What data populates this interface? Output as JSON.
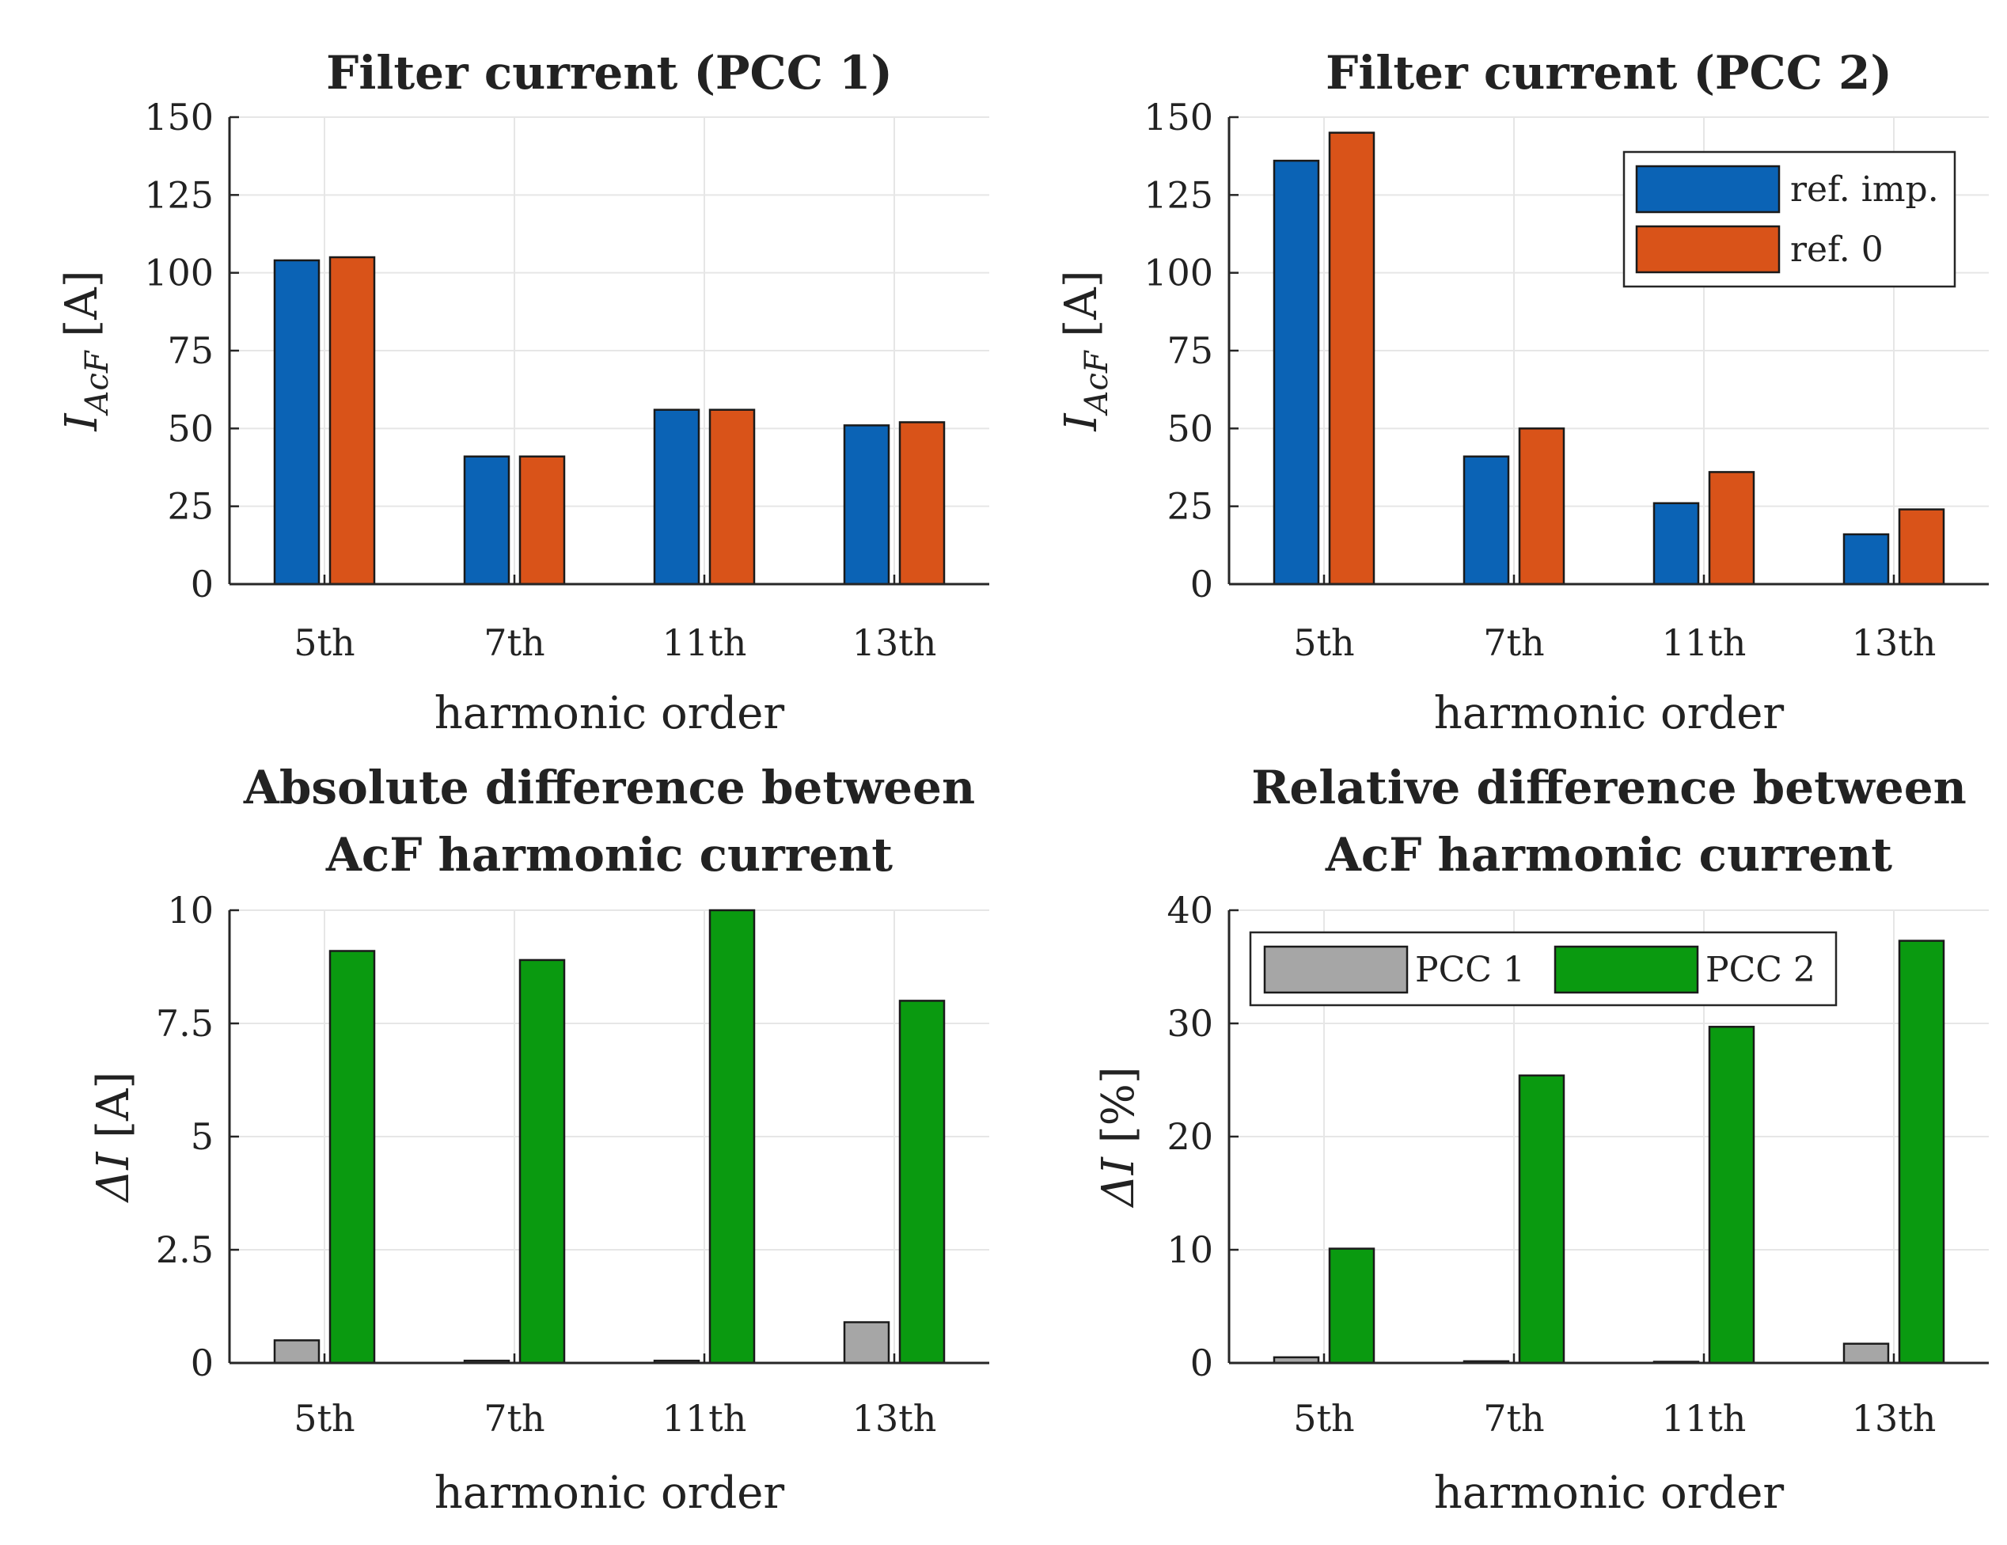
{
  "chart_data": [
    {
      "type": "bar",
      "title": [
        "Filter current (PCC 1)"
      ],
      "categories": [
        "5th",
        "7th",
        "11th",
        "13th"
      ],
      "xlabel": "harmonic order",
      "ylabel": {
        "symbol": "I",
        "subscript": "AcF",
        "unit": "[A]"
      },
      "ylim": [
        0,
        150
      ],
      "yticks": [
        "0",
        "25",
        "50",
        "75",
        "100",
        "125",
        "150"
      ],
      "ytick_values": [
        0,
        25,
        50,
        75,
        100,
        125,
        150
      ],
      "grid": true,
      "legend": null,
      "series": [
        {
          "name": "ref. imp.",
          "color": "#0b63b5",
          "values": [
            104,
            41,
            56,
            51
          ]
        },
        {
          "name": "ref. 0",
          "color": "#d95319",
          "values": [
            105,
            41,
            56,
            52
          ]
        }
      ]
    },
    {
      "type": "bar",
      "title": [
        "Filter current (PCC 2)"
      ],
      "categories": [
        "5th",
        "7th",
        "11th",
        "13th"
      ],
      "xlabel": "harmonic order",
      "ylabel": {
        "symbol": "I",
        "subscript": "AcF",
        "unit": "[A]"
      },
      "ylim": [
        0,
        150
      ],
      "yticks": [
        "0",
        "25",
        "50",
        "75",
        "100",
        "125",
        "150"
      ],
      "ytick_values": [
        0,
        25,
        50,
        75,
        100,
        125,
        150
      ],
      "grid": true,
      "legend": {
        "position": "top-right",
        "entries": [
          "ref. imp.",
          "ref. 0"
        ]
      },
      "series": [
        {
          "name": "ref. imp.",
          "color": "#0b63b5",
          "values": [
            136,
            41,
            26,
            16
          ]
        },
        {
          "name": "ref. 0",
          "color": "#d95319",
          "values": [
            145,
            50,
            36,
            24
          ]
        }
      ]
    },
    {
      "type": "bar",
      "title": [
        "Absolute difference between",
        "AcF harmonic current"
      ],
      "categories": [
        "5th",
        "7th",
        "11th",
        "13th"
      ],
      "xlabel": "harmonic order",
      "ylabel": {
        "symbol": "ΔI",
        "subscript": "",
        "unit": "[A]"
      },
      "ylim": [
        0,
        10
      ],
      "yticks": [
        "0",
        "2.5",
        "5",
        "7.5",
        "10"
      ],
      "ytick_values": [
        0,
        2.5,
        5,
        7.5,
        10
      ],
      "grid": true,
      "legend": null,
      "series": [
        {
          "name": "PCC 1",
          "color": "#a6a6a6",
          "values": [
            0.5,
            0.05,
            0.05,
            0.9
          ]
        },
        {
          "name": "PCC 2",
          "color": "#0a9a10",
          "values": [
            9.1,
            8.9,
            10.0,
            8.0
          ]
        }
      ]
    },
    {
      "type": "bar",
      "title": [
        "Relative difference between",
        "AcF harmonic current"
      ],
      "categories": [
        "5th",
        "7th",
        "11th",
        "13th"
      ],
      "xlabel": "harmonic order",
      "ylabel": {
        "symbol": "ΔI",
        "subscript": "",
        "unit": "[%]"
      },
      "ylim": [
        0,
        40
      ],
      "yticks": [
        "0",
        "10",
        "20",
        "30",
        "40"
      ],
      "ytick_values": [
        0,
        10,
        20,
        30,
        40
      ],
      "grid": true,
      "legend": {
        "position": "top-horizontal",
        "entries": [
          "PCC 1",
          "PCC 2"
        ]
      },
      "series": [
        {
          "name": "PCC 1",
          "color": "#a6a6a6",
          "values": [
            0.5,
            0.15,
            0.1,
            1.7
          ]
        },
        {
          "name": "PCC 2",
          "color": "#0a9a10",
          "values": [
            10.1,
            25.4,
            29.7,
            37.3
          ]
        }
      ]
    }
  ]
}
